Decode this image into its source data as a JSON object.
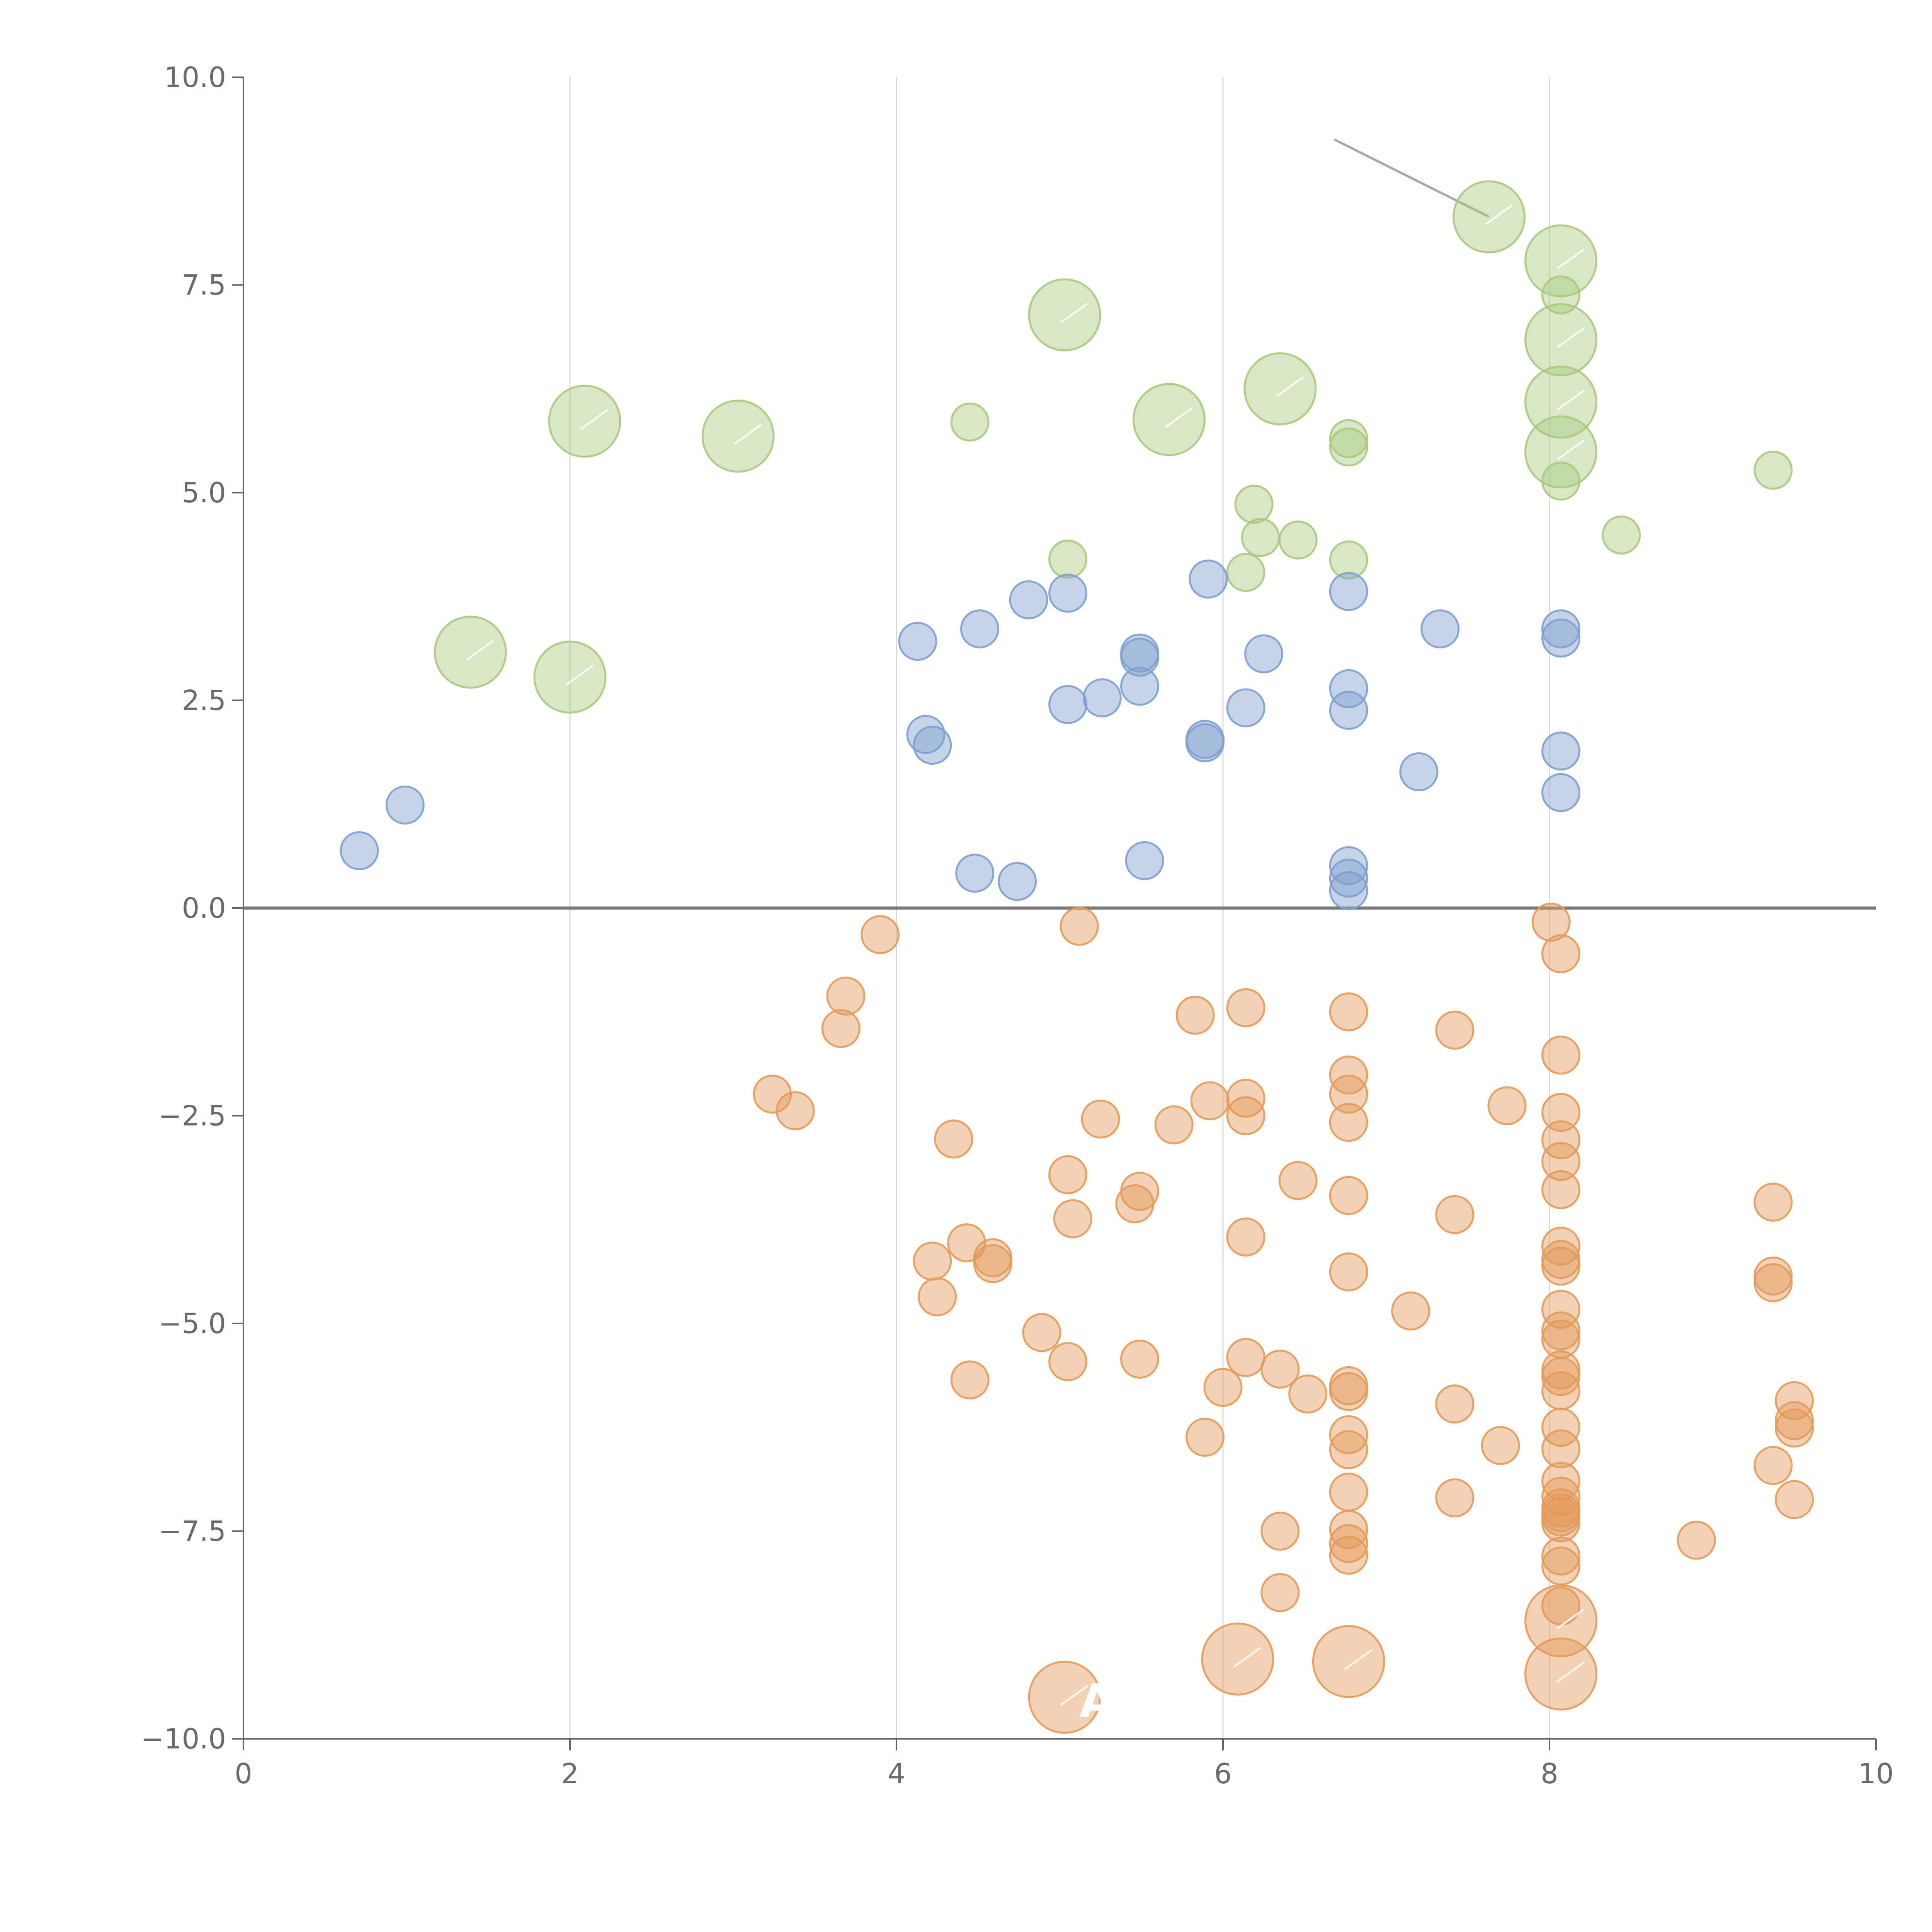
{
  "chart_data": {
    "type": "scatter",
    "title": "",
    "xlabel": "",
    "ylabel": "",
    "xlim": [
      0,
      10
    ],
    "ylim": [
      -10,
      10
    ],
    "x_ticks": [
      0,
      2,
      4,
      6,
      8,
      10
    ],
    "x_tick_labels": [
      "0",
      "2",
      "4",
      "6",
      "8",
      "10"
    ],
    "y_ticks": [
      10,
      7.5,
      5,
      2.5,
      0,
      -2.5,
      -5,
      -7.5,
      -10
    ],
    "y_tick_labels": [
      "10.0",
      "7.5",
      "5.0",
      "2.5",
      "0.0",
      "−2.5",
      "−5.0",
      "−7.5",
      "−10.0"
    ],
    "grid": "vertical",
    "reference_line": 0,
    "colors": {
      "green": "#a9c97e",
      "blue": "#7f9fcf",
      "orange": "#e39a5b",
      "label": "#ffffff",
      "leader": "#a8a8a8"
    },
    "series": [
      {
        "name": "green",
        "color": "#a9c97e",
        "points": [
          {
            "x": 7.63,
            "y": 8.32,
            "s": "l"
          },
          {
            "x": 8.07,
            "y": 7.79,
            "s": "l"
          },
          {
            "x": 8.07,
            "y": 7.38,
            "s": "s"
          },
          {
            "x": 5.03,
            "y": 7.14,
            "s": "l"
          },
          {
            "x": 8.07,
            "y": 6.84,
            "s": "l"
          },
          {
            "x": 6.35,
            "y": 6.25,
            "s": "l"
          },
          {
            "x": 8.07,
            "y": 6.09,
            "s": "l"
          },
          {
            "x": 2.09,
            "y": 5.86,
            "s": "l"
          },
          {
            "x": 5.67,
            "y": 5.88,
            "s": "l"
          },
          {
            "x": 4.45,
            "y": 5.85,
            "s": "s"
          },
          {
            "x": 3.03,
            "y": 5.68,
            "s": "l"
          },
          {
            "x": 6.77,
            "y": 5.65,
            "s": "s"
          },
          {
            "x": 6.77,
            "y": 5.55,
            "s": "s"
          },
          {
            "x": 8.07,
            "y": 5.49,
            "s": "l"
          },
          {
            "x": 9.37,
            "y": 5.27,
            "s": "s"
          },
          {
            "x": 8.07,
            "y": 5.14,
            "s": "s"
          },
          {
            "x": 6.19,
            "y": 4.86,
            "s": "s"
          },
          {
            "x": 8.44,
            "y": 4.49,
            "s": "s"
          },
          {
            "x": 6.23,
            "y": 4.46,
            "s": "s"
          },
          {
            "x": 6.46,
            "y": 4.43,
            "s": "s"
          },
          {
            "x": 5.05,
            "y": 4.2,
            "s": "s"
          },
          {
            "x": 6.77,
            "y": 4.19,
            "s": "s"
          },
          {
            "x": 6.14,
            "y": 4.04,
            "s": "s"
          },
          {
            "x": 1.39,
            "y": 3.08,
            "s": "l"
          },
          {
            "x": 2.0,
            "y": 2.78,
            "s": "l"
          }
        ]
      },
      {
        "name": "blue",
        "color": "#7f9fcf",
        "points": [
          {
            "x": 5.91,
            "y": 3.96,
            "s": "s"
          },
          {
            "x": 4.81,
            "y": 3.71,
            "s": "s"
          },
          {
            "x": 5.05,
            "y": 3.79,
            "s": "s"
          },
          {
            "x": 6.77,
            "y": 3.81,
            "s": "s"
          },
          {
            "x": 4.51,
            "y": 3.36,
            "s": "s"
          },
          {
            "x": 7.33,
            "y": 3.36,
            "s": "s"
          },
          {
            "x": 8.07,
            "y": 3.36,
            "s": "s"
          },
          {
            "x": 8.07,
            "y": 3.25,
            "s": "s"
          },
          {
            "x": 4.13,
            "y": 3.21,
            "s": "s"
          },
          {
            "x": 5.49,
            "y": 3.07,
            "s": "s"
          },
          {
            "x": 5.49,
            "y": 3.02,
            "s": "s"
          },
          {
            "x": 6.25,
            "y": 3.06,
            "s": "s"
          },
          {
            "x": 5.49,
            "y": 2.67,
            "s": "s"
          },
          {
            "x": 6.77,
            "y": 2.64,
            "s": "s"
          },
          {
            "x": 5.26,
            "y": 2.53,
            "s": "s"
          },
          {
            "x": 5.05,
            "y": 2.45,
            "s": "s"
          },
          {
            "x": 6.14,
            "y": 2.41,
            "s": "s"
          },
          {
            "x": 6.77,
            "y": 2.38,
            "s": "s"
          },
          {
            "x": 4.18,
            "y": 2.09,
            "s": "s"
          },
          {
            "x": 4.22,
            "y": 1.96,
            "s": "s"
          },
          {
            "x": 5.89,
            "y": 2.03,
            "s": "s"
          },
          {
            "x": 5.89,
            "y": 1.99,
            "s": "s"
          },
          {
            "x": 8.07,
            "y": 1.89,
            "s": "s"
          },
          {
            "x": 7.2,
            "y": 1.64,
            "s": "s"
          },
          {
            "x": 8.07,
            "y": 1.39,
            "s": "s"
          },
          {
            "x": 0.99,
            "y": 1.24,
            "s": "s"
          },
          {
            "x": 0.71,
            "y": 0.69,
            "s": "s"
          },
          {
            "x": 5.52,
            "y": 0.57,
            "s": "s"
          },
          {
            "x": 6.77,
            "y": 0.51,
            "s": "s"
          },
          {
            "x": 4.48,
            "y": 0.42,
            "s": "s"
          },
          {
            "x": 6.77,
            "y": 0.36,
            "s": "s"
          },
          {
            "x": 4.74,
            "y": 0.32,
            "s": "s"
          },
          {
            "x": 6.77,
            "y": 0.21,
            "s": "s"
          }
        ]
      },
      {
        "name": "orange",
        "color": "#e39a5b",
        "points": [
          {
            "x": 8.01,
            "y": -0.17,
            "s": "s"
          },
          {
            "x": 5.12,
            "y": -0.22,
            "s": "s"
          },
          {
            "x": 3.9,
            "y": -0.32,
            "s": "s"
          },
          {
            "x": 8.07,
            "y": -0.55,
            "s": "s"
          },
          {
            "x": 3.69,
            "y": -1.06,
            "s": "s"
          },
          {
            "x": 6.14,
            "y": -1.2,
            "s": "s"
          },
          {
            "x": 6.77,
            "y": -1.25,
            "s": "s"
          },
          {
            "x": 5.83,
            "y": -1.29,
            "s": "s"
          },
          {
            "x": 3.66,
            "y": -1.45,
            "s": "s"
          },
          {
            "x": 7.42,
            "y": -1.47,
            "s": "s"
          },
          {
            "x": 8.07,
            "y": -1.77,
            "s": "s"
          },
          {
            "x": 6.77,
            "y": -2.01,
            "s": "s"
          },
          {
            "x": 3.24,
            "y": -2.24,
            "s": "s"
          },
          {
            "x": 6.77,
            "y": -2.24,
            "s": "s"
          },
          {
            "x": 6.14,
            "y": -2.29,
            "s": "s"
          },
          {
            "x": 5.92,
            "y": -2.32,
            "s": "s"
          },
          {
            "x": 7.74,
            "y": -2.38,
            "s": "s"
          },
          {
            "x": 3.38,
            "y": -2.44,
            "s": "s"
          },
          {
            "x": 8.07,
            "y": -2.46,
            "s": "s"
          },
          {
            "x": 6.14,
            "y": -2.5,
            "s": "s"
          },
          {
            "x": 5.25,
            "y": -2.54,
            "s": "s"
          },
          {
            "x": 6.77,
            "y": -2.58,
            "s": "s"
          },
          {
            "x": 5.7,
            "y": -2.61,
            "s": "s"
          },
          {
            "x": 8.07,
            "y": -2.79,
            "s": "s"
          },
          {
            "x": 4.35,
            "y": -2.78,
            "s": "s"
          },
          {
            "x": 8.07,
            "y": -3.05,
            "s": "s"
          },
          {
            "x": 5.05,
            "y": -3.21,
            "s": "s"
          },
          {
            "x": 6.46,
            "y": -3.28,
            "s": "s"
          },
          {
            "x": 8.07,
            "y": -3.39,
            "s": "s"
          },
          {
            "x": 5.49,
            "y": -3.41,
            "s": "s"
          },
          {
            "x": 6.77,
            "y": -3.46,
            "s": "s"
          },
          {
            "x": 9.37,
            "y": -3.54,
            "s": "s"
          },
          {
            "x": 5.46,
            "y": -3.56,
            "s": "s"
          },
          {
            "x": 7.42,
            "y": -3.69,
            "s": "s"
          },
          {
            "x": 5.08,
            "y": -3.74,
            "s": "s"
          },
          {
            "x": 6.14,
            "y": -3.96,
            "s": "s"
          },
          {
            "x": 4.43,
            "y": -4.03,
            "s": "s"
          },
          {
            "x": 8.07,
            "y": -4.07,
            "s": "s"
          },
          {
            "x": 4.59,
            "y": -4.21,
            "s": "s"
          },
          {
            "x": 8.07,
            "y": -4.23,
            "s": "s"
          },
          {
            "x": 4.22,
            "y": -4.25,
            "s": "s"
          },
          {
            "x": 4.59,
            "y": -4.28,
            "s": "s"
          },
          {
            "x": 8.07,
            "y": -4.31,
            "s": "s"
          },
          {
            "x": 6.77,
            "y": -4.38,
            "s": "s"
          },
          {
            "x": 9.37,
            "y": -4.43,
            "s": "s"
          },
          {
            "x": 9.37,
            "y": -4.51,
            "s": "s"
          },
          {
            "x": 4.25,
            "y": -4.68,
            "s": "s"
          },
          {
            "x": 7.15,
            "y": -4.85,
            "s": "s"
          },
          {
            "x": 8.07,
            "y": -4.83,
            "s": "s"
          },
          {
            "x": 4.89,
            "y": -5.11,
            "s": "s"
          },
          {
            "x": 8.07,
            "y": -5.09,
            "s": "s"
          },
          {
            "x": 8.07,
            "y": -5.19,
            "s": "s"
          },
          {
            "x": 6.14,
            "y": -5.41,
            "s": "s"
          },
          {
            "x": 5.05,
            "y": -5.46,
            "s": "s"
          },
          {
            "x": 5.49,
            "y": -5.43,
            "s": "s"
          },
          {
            "x": 6.35,
            "y": -5.55,
            "s": "s"
          },
          {
            "x": 8.07,
            "y": -5.56,
            "s": "s"
          },
          {
            "x": 8.07,
            "y": -5.64,
            "s": "s"
          },
          {
            "x": 4.45,
            "y": -5.68,
            "s": "s"
          },
          {
            "x": 6.77,
            "y": -5.75,
            "s": "s"
          },
          {
            "x": 6.0,
            "y": -5.77,
            "s": "s"
          },
          {
            "x": 6.77,
            "y": -5.82,
            "s": "s"
          },
          {
            "x": 8.07,
            "y": -5.81,
            "s": "s"
          },
          {
            "x": 6.52,
            "y": -5.85,
            "s": "s"
          },
          {
            "x": 9.5,
            "y": -5.93,
            "s": "s"
          },
          {
            "x": 7.42,
            "y": -5.97,
            "s": "s"
          },
          {
            "x": 9.5,
            "y": -6.17,
            "s": "s"
          },
          {
            "x": 8.07,
            "y": -6.25,
            "s": "s"
          },
          {
            "x": 9.5,
            "y": -6.26,
            "s": "s"
          },
          {
            "x": 6.77,
            "y": -6.34,
            "s": "s"
          },
          {
            "x": 5.89,
            "y": -6.37,
            "s": "s"
          },
          {
            "x": 7.7,
            "y": -6.47,
            "s": "s"
          },
          {
            "x": 6.77,
            "y": -6.52,
            "s": "s"
          },
          {
            "x": 8.07,
            "y": -6.51,
            "s": "s"
          },
          {
            "x": 9.37,
            "y": -6.71,
            "s": "s"
          },
          {
            "x": 8.07,
            "y": -6.9,
            "s": "s"
          },
          {
            "x": 6.77,
            "y": -7.03,
            "s": "s"
          },
          {
            "x": 8.07,
            "y": -7.08,
            "s": "s"
          },
          {
            "x": 7.42,
            "y": -7.1,
            "s": "s"
          },
          {
            "x": 9.5,
            "y": -7.12,
            "s": "s"
          },
          {
            "x": 8.07,
            "y": -7.22,
            "s": "s"
          },
          {
            "x": 8.07,
            "y": -7.28,
            "s": "s"
          },
          {
            "x": 8.07,
            "y": -7.33,
            "s": "s"
          },
          {
            "x": 8.07,
            "y": -7.4,
            "s": "s"
          },
          {
            "x": 6.77,
            "y": -7.48,
            "s": "s"
          },
          {
            "x": 6.35,
            "y": -7.5,
            "s": "s"
          },
          {
            "x": 8.9,
            "y": -7.61,
            "s": "s"
          },
          {
            "x": 6.77,
            "y": -7.65,
            "s": "s"
          },
          {
            "x": 6.77,
            "y": -7.79,
            "s": "s"
          },
          {
            "x": 8.07,
            "y": -7.8,
            "s": "s"
          },
          {
            "x": 8.07,
            "y": -7.92,
            "s": "s"
          },
          {
            "x": 6.35,
            "y": -8.24,
            "s": "s"
          },
          {
            "x": 8.07,
            "y": -8.4,
            "s": "s"
          },
          {
            "x": 8.07,
            "y": -8.58,
            "s": "l"
          },
          {
            "x": 6.09,
            "y": -9.04,
            "s": "l"
          },
          {
            "x": 6.77,
            "y": -9.07,
            "s": "l"
          },
          {
            "x": 8.07,
            "y": -9.22,
            "s": "l"
          },
          {
            "x": 5.03,
            "y": -9.5,
            "s": "l"
          }
        ]
      }
    ],
    "annotations": [
      {
        "text": "A",
        "x": 5.12,
        "y": -9.55
      }
    ]
  }
}
